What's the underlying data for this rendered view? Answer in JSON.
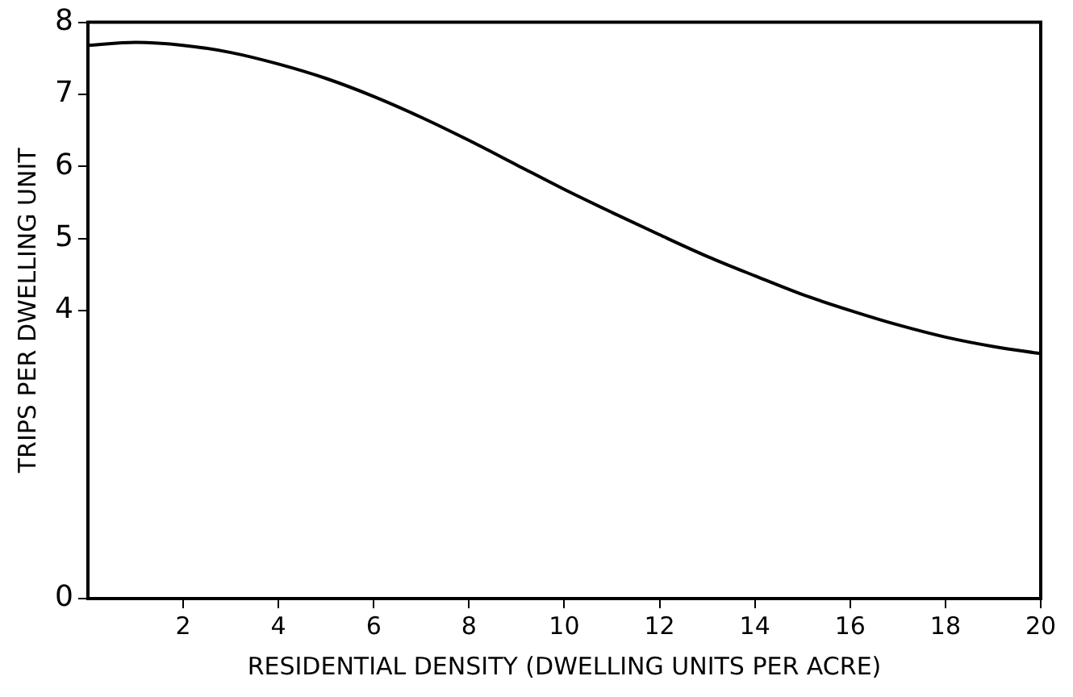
{
  "chart_data": {
    "type": "line",
    "xlabel": "RESIDENTIAL DENSITY (DWELLING UNITS PER ACRE)",
    "ylabel": "TRIPS PER DWELLING UNIT",
    "x": [
      0,
      1,
      2,
      3,
      4,
      5,
      6,
      7,
      8,
      9,
      10,
      11,
      12,
      13,
      14,
      15,
      16,
      17,
      18,
      19,
      20
    ],
    "series": [
      {
        "color": "#000000",
        "values": [
          7.68,
          7.72,
          7.68,
          7.58,
          7.42,
          7.22,
          6.97,
          6.68,
          6.36,
          6.02,
          5.68,
          5.36,
          5.05,
          4.75,
          4.48,
          4.22,
          4.0,
          3.8,
          3.63,
          3.5,
          3.4
        ]
      }
    ],
    "xlim": [
      0,
      20
    ],
    "xticks": [
      2,
      4,
      6,
      8,
      10,
      12,
      14,
      16,
      18,
      20
    ],
    "ylim": [
      0,
      8
    ],
    "yticks": [
      0,
      4,
      5,
      6,
      7,
      8
    ],
    "grid": false,
    "legend": false,
    "marker": "none",
    "line_style": "solid"
  }
}
